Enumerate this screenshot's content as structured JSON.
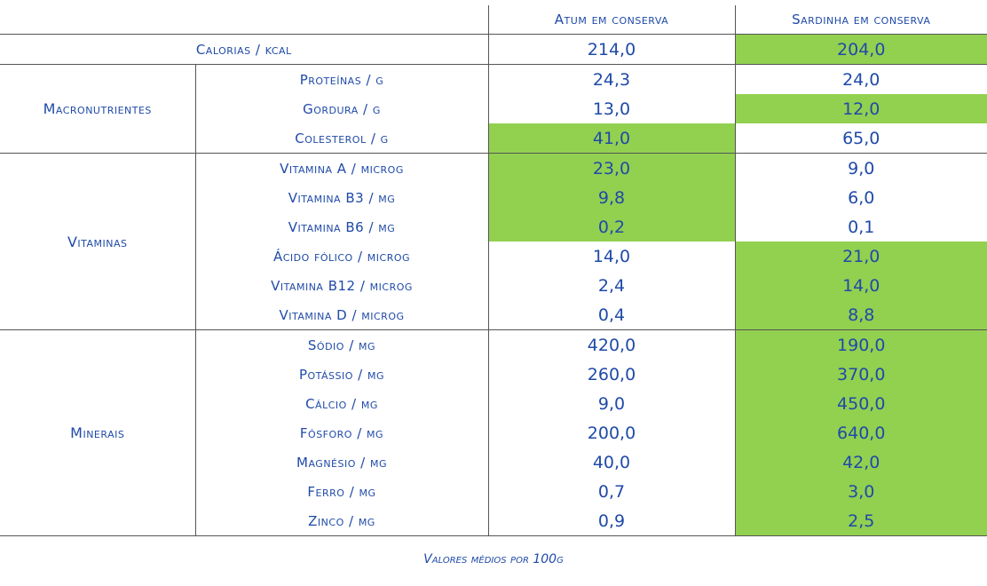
{
  "headers": [
    "Atum em conserva",
    "Sardinha em conserva"
  ],
  "highlight_color": "#92d050",
  "calorias": {
    "label": "Calorias / kcal",
    "atum": "214,0",
    "sardinha": "204,0"
  },
  "groups": [
    {
      "name": "Macronutrientes",
      "rows": [
        {
          "label": "Proteínas / g",
          "atum": "24,3",
          "sardinha": "24,0"
        },
        {
          "label": "Gordura / g",
          "atum": "13,0",
          "sardinha": "12,0"
        },
        {
          "label": "Colesterol / g",
          "atum": "41,0",
          "sardinha": "65,0"
        }
      ]
    },
    {
      "name": "Vitaminas",
      "rows": [
        {
          "label": "Vitamina A / microg",
          "atum": "23,0",
          "sardinha": "9,0"
        },
        {
          "label": "Vitamina B3 / mg",
          "atum": "9,8",
          "sardinha": "6,0"
        },
        {
          "label": "Vitamina B6 / mg",
          "atum": "0,2",
          "sardinha": "0,1"
        },
        {
          "label": "Ácido fólico / microg",
          "atum": "14,0",
          "sardinha": "21,0"
        },
        {
          "label": "Vitamina B12 / microg",
          "atum": "2,4",
          "sardinha": "14,0"
        },
        {
          "label": "Vitamina D / microg",
          "atum": "0,4",
          "sardinha": "8,8"
        }
      ]
    },
    {
      "name": "Minerais",
      "rows": [
        {
          "label": "Sódio / mg",
          "atum": "420,0",
          "sardinha": "190,0"
        },
        {
          "label": "Potássio / mg",
          "atum": "260,0",
          "sardinha": "370,0"
        },
        {
          "label": "Cálcio / mg",
          "atum": "9,0",
          "sardinha": "450,0"
        },
        {
          "label": "Fósforo / mg",
          "atum": "200,0",
          "sardinha": "640,0"
        },
        {
          "label": "Magnésio / mg",
          "atum": "40,0",
          "sardinha": "42,0"
        },
        {
          "label": "Ferro / mg",
          "atum": "0,7",
          "sardinha": "3,0"
        },
        {
          "label": "Zinco / mg",
          "atum": "0,9",
          "sardinha": "2,5"
        }
      ]
    }
  ],
  "footer": "Valores médios por 100g"
}
